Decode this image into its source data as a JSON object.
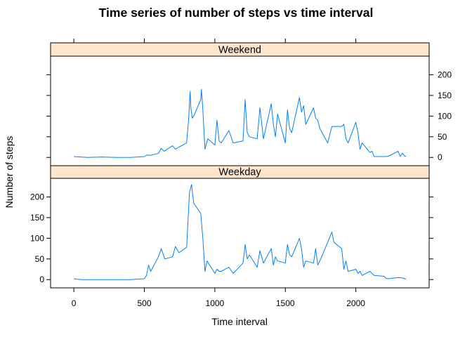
{
  "chart_data": {
    "type": "line",
    "title": "Time series of number of steps vs time interval",
    "xlabel": "Time interval",
    "ylabel": "Number of steps",
    "xlim": [
      -165,
      2520
    ],
    "ylim": [
      -20,
      245
    ],
    "x_ticks": [
      0,
      500,
      1000,
      1500,
      2000
    ],
    "y_ticks": [
      0,
      50,
      100,
      150,
      200
    ],
    "panels": [
      {
        "strip": "Weekend",
        "name": "Weekend",
        "x": [
          0,
          50,
          100,
          200,
          300,
          400,
          500,
          520,
          545,
          600,
          620,
          640,
          700,
          720,
          745,
          800,
          815,
          825,
          830,
          840,
          850,
          900,
          905,
          915,
          930,
          950,
          1000,
          1015,
          1030,
          1045,
          1100,
          1130,
          1200,
          1215,
          1230,
          1245,
          1300,
          1320,
          1345,
          1400,
          1415,
          1430,
          1445,
          1500,
          1515,
          1530,
          1545,
          1600,
          1615,
          1630,
          1645,
          1700,
          1715,
          1730,
          1745,
          1800,
          1830,
          1900,
          1915,
          1930,
          1945,
          2000,
          2015,
          2030,
          2045,
          2100,
          2115,
          2130,
          2200,
          2215,
          2230,
          2300,
          2315,
          2330,
          2345,
          2355
        ],
        "y": [
          2,
          1,
          0,
          1,
          0,
          0,
          2,
          6,
          5,
          10,
          22,
          15,
          28,
          20,
          25,
          35,
          95,
          160,
          120,
          95,
          100,
          140,
          165,
          115,
          20,
          45,
          30,
          90,
          40,
          35,
          65,
          35,
          40,
          140,
          60,
          50,
          45,
          120,
          45,
          130,
          80,
          50,
          105,
          35,
          115,
          70,
          60,
          145,
          110,
          125,
          80,
          120,
          95,
          90,
          70,
          35,
          75,
          75,
          80,
          45,
          35,
          85,
          60,
          20,
          35,
          12,
          15,
          2,
          2,
          2,
          3,
          15,
          2,
          10,
          4,
          2
        ]
      },
      {
        "strip": "Weekday",
        "name": "Weekday",
        "x": [
          0,
          50,
          100,
          200,
          300,
          400,
          500,
          515,
          530,
          545,
          600,
          620,
          645,
          700,
          720,
          745,
          800,
          815,
          820,
          835,
          850,
          900,
          915,
          930,
          945,
          1000,
          1015,
          1030,
          1045,
          1100,
          1130,
          1200,
          1215,
          1230,
          1245,
          1300,
          1320,
          1345,
          1400,
          1415,
          1430,
          1445,
          1500,
          1515,
          1530,
          1545,
          1600,
          1615,
          1630,
          1645,
          1700,
          1715,
          1730,
          1745,
          1800,
          1830,
          1845,
          1900,
          1915,
          1930,
          1945,
          2000,
          2015,
          2030,
          2045,
          2100,
          2130,
          2200,
          2215,
          2230,
          2300,
          2330,
          2355
        ],
        "y": [
          2,
          0,
          0,
          0,
          0,
          0,
          2,
          10,
          35,
          20,
          55,
          75,
          50,
          55,
          80,
          65,
          78,
          175,
          210,
          230,
          185,
          160,
          100,
          20,
          45,
          15,
          25,
          20,
          20,
          30,
          15,
          40,
          85,
          50,
          60,
          30,
          70,
          40,
          75,
          35,
          55,
          45,
          40,
          85,
          60,
          55,
          100,
          75,
          30,
          45,
          40,
          75,
          35,
          45,
          90,
          115,
          90,
          75,
          25,
          45,
          20,
          25,
          15,
          20,
          10,
          20,
          10,
          8,
          3,
          2,
          5,
          4,
          1
        ]
      }
    ]
  }
}
